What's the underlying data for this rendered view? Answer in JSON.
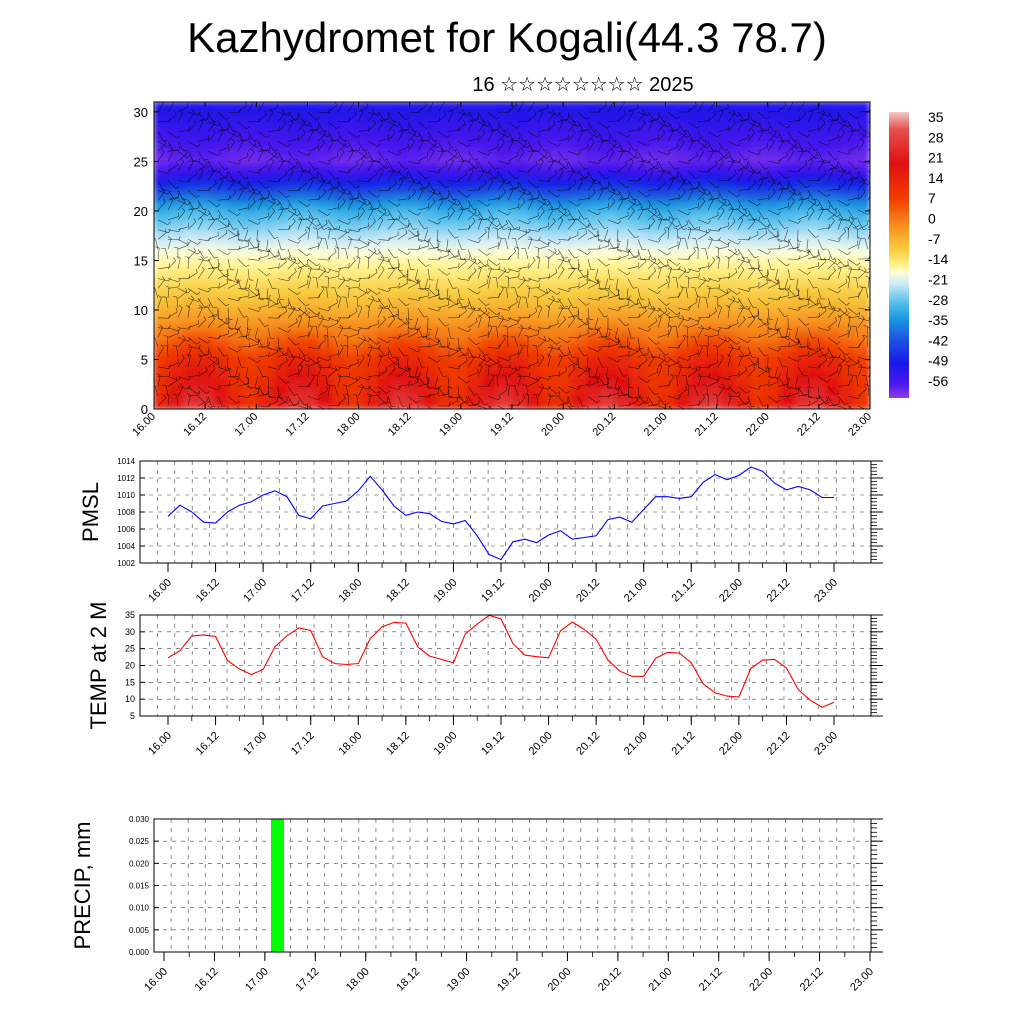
{
  "title": "Kazhydromet for Kogali(44.3 78.7)",
  "subtitle": "16 ☆☆☆☆☆☆☆☆ 2025",
  "colors": {
    "pmsl_line": "#0000ff",
    "temp_line": "#ff0000",
    "precip_bar": "#00ff00",
    "barbs": "#000000"
  },
  "chart_data": [
    {
      "type": "heatmap",
      "title": "",
      "xlabel": "",
      "ylabel": "",
      "x_ticks": [
        "16.00",
        "16.12",
        "17.00",
        "17.12",
        "18.00",
        "18.12",
        "19.00",
        "19.12",
        "20.00",
        "20.12",
        "21.00",
        "21.12",
        "22.00",
        "22.12",
        "23.00"
      ],
      "y_ticks": [
        0,
        5,
        10,
        15,
        20,
        25,
        30
      ],
      "ylim": [
        0,
        31
      ],
      "overlay": "wind barbs",
      "colorbar": {
        "labels": [
          "35",
          "28",
          "21",
          "14",
          "7",
          "0",
          "-7",
          "-14",
          "-21",
          "-28",
          "-35",
          "-42",
          "-49",
          "-56"
        ],
        "palette": "red-to-purple temperature"
      },
      "z_levels": [
        0,
        5,
        10,
        15,
        20,
        25,
        30
      ],
      "z_values_by_level": [
        [
          16,
          28
        ],
        [
          14,
          18
        ],
        [
          2,
          5
        ],
        [
          -7,
          -6
        ],
        [
          -28,
          -20
        ],
        [
          -56,
          -50
        ],
        [
          -45,
          -42
        ]
      ]
    },
    {
      "type": "line",
      "ylabel": "PMSL",
      "ylim": [
        1002,
        1014
      ],
      "y_ticks": [
        1002,
        1004,
        1006,
        1008,
        1010,
        1012,
        1014
      ],
      "x_ticks": [
        "16.00",
        "16.12",
        "17.00",
        "17.12",
        "18.00",
        "18.12",
        "19.00",
        "19.12",
        "20.00",
        "20.12",
        "21.00",
        "21.12",
        "22.00",
        "22.12",
        "23.00"
      ],
      "grid": true,
      "series": [
        {
          "color": "#0000ff",
          "x_step_hours": 3,
          "values": [
            1007.5,
            1008.8,
            1008.0,
            1006.8,
            1006.7,
            1008.0,
            1008.8,
            1009.2,
            1010.0,
            1010.5,
            1009.8,
            1007.6,
            1007.2,
            1008.7,
            1009.0,
            1009.3,
            1010.5,
            1012.2,
            1010.6,
            1008.7,
            1007.6,
            1008.0,
            1007.8,
            1006.9,
            1006.6,
            1007.0,
            1005.2,
            1003.0,
            1002.4,
            1004.5,
            1004.8,
            1004.4,
            1005.3,
            1005.8,
            1004.8,
            1005.0,
            1005.2,
            1007.1,
            1007.4,
            1006.8,
            1008.3,
            1009.8,
            1009.8,
            1009.6,
            1009.8,
            1011.5,
            1012.4,
            1011.8,
            1012.3,
            1013.3,
            1012.8,
            1011.4,
            1010.6,
            1011.0,
            1010.6,
            1009.7,
            1009.7
          ]
        }
      ]
    },
    {
      "type": "line",
      "ylabel": "TEMP at 2 M",
      "ylim": [
        5,
        35
      ],
      "y_ticks": [
        5,
        10,
        15,
        20,
        25,
        30,
        35
      ],
      "x_ticks": [
        "16.00",
        "16.12",
        "17.00",
        "17.12",
        "18.00",
        "18.12",
        "19.00",
        "19.12",
        "20.00",
        "20.12",
        "21.00",
        "21.12",
        "22.00",
        "22.12",
        "23.00"
      ],
      "grid": true,
      "series": [
        {
          "color": "#ff0000",
          "x_step_hours": 3,
          "values": [
            22.3,
            24.4,
            28.8,
            29.1,
            28.6,
            21.5,
            19.0,
            17.3,
            18.8,
            25.6,
            28.8,
            31.2,
            30.4,
            22.6,
            20.6,
            20.3,
            20.6,
            28.0,
            31.5,
            32.8,
            32.6,
            25.5,
            22.8,
            21.8,
            20.8,
            29.4,
            32.3,
            34.9,
            33.8,
            26.5,
            23.1,
            22.6,
            22.3,
            30.3,
            32.9,
            30.7,
            27.8,
            21.6,
            18.3,
            16.8,
            16.8,
            22.1,
            23.9,
            23.7,
            20.8,
            14.5,
            11.9,
            10.9,
            10.6,
            19.1,
            21.6,
            21.8,
            19.3,
            12.8,
            9.7,
            7.6,
            9.1
          ]
        }
      ]
    },
    {
      "type": "bar",
      "ylabel": "PRECIP, mm",
      "ylim": [
        0,
        0.03
      ],
      "y_ticks": [
        "0.000",
        "0.005",
        "0.010",
        "0.015",
        "0.020",
        "0.025",
        "0.030"
      ],
      "x_ticks": [
        "16.00",
        "16.12",
        "17.00",
        "17.12",
        "18.00",
        "18.12",
        "19.00",
        "19.12",
        "20.00",
        "20.12",
        "21.00",
        "21.12",
        "22.00",
        "22.12",
        "23.00"
      ],
      "grid": true,
      "bars": [
        {
          "x": "17.03",
          "value": 0.03,
          "color": "#00ff00"
        }
      ]
    }
  ]
}
